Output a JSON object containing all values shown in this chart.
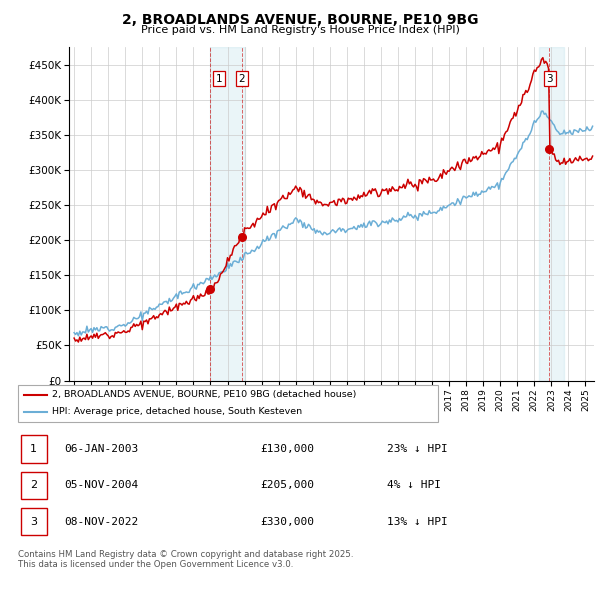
{
  "title": "2, BROADLANDS AVENUE, BOURNE, PE10 9BG",
  "subtitle": "Price paid vs. HM Land Registry's House Price Index (HPI)",
  "ylim": [
    0,
    475000
  ],
  "yticks": [
    0,
    50000,
    100000,
    150000,
    200000,
    250000,
    300000,
    350000,
    400000,
    450000
  ],
  "ytick_labels": [
    "£0",
    "£50K",
    "£100K",
    "£150K",
    "£200K",
    "£250K",
    "£300K",
    "£350K",
    "£400K",
    "£450K"
  ],
  "hpi_color": "#6baed6",
  "price_color": "#cc0000",
  "legend_label_price": "2, BROADLANDS AVENUE, BOURNE, PE10 9BG (detached house)",
  "legend_label_hpi": "HPI: Average price, detached house, South Kesteven",
  "table_rows": [
    {
      "num": "1",
      "date": "06-JAN-2003",
      "price": "£130,000",
      "hpi": "23% ↓ HPI"
    },
    {
      "num": "2",
      "date": "05-NOV-2004",
      "price": "£205,000",
      "hpi": "4% ↓ HPI"
    },
    {
      "num": "3",
      "date": "08-NOV-2022",
      "price": "£330,000",
      "hpi": "13% ↓ HPI"
    }
  ],
  "footnote": "Contains HM Land Registry data © Crown copyright and database right 2025.\nThis data is licensed under the Open Government Licence v3.0.",
  "grid_color": "#cccccc",
  "span_color": "#add8e6",
  "span_alpha": 0.25
}
